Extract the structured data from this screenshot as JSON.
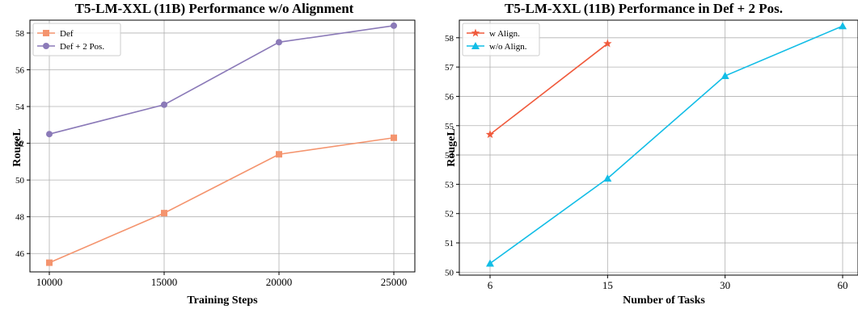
{
  "charts": [
    {
      "chart_data": {
        "type": "line",
        "title": "T5-LM-XXL (11B) Performance w/o Alignment",
        "xlabel": "Training Steps",
        "ylabel": "RougeL",
        "x": [
          10000,
          15000,
          20000,
          25000
        ],
        "xticks": [
          "10000",
          "15000",
          "20000",
          "25000"
        ],
        "yticks": [
          "46",
          "48",
          "50",
          "52",
          "54",
          "56",
          "58"
        ],
        "ylim": [
          45.0,
          58.7
        ],
        "grid": true,
        "legend_position": "top-left",
        "series": [
          {
            "name": "Def",
            "values": [
              45.5,
              48.2,
              51.4,
              52.3
            ],
            "color": "#f4946e",
            "marker": "square"
          },
          {
            "name": "Def + 2 Pos.",
            "values": [
              52.5,
              54.1,
              57.5,
              58.4
            ],
            "color": "#8b7ab8",
            "marker": "circle"
          }
        ]
      }
    },
    {
      "chart_data": {
        "type": "line",
        "title": "T5-LM-XXL (11B) Performance in Def + 2 Pos.",
        "xlabel": "Number of Tasks",
        "ylabel": "RougeL",
        "x": [
          6,
          15,
          30,
          60
        ],
        "xticks": [
          "6",
          "15",
          "30",
          "60"
        ],
        "yticks": [
          "50",
          "51",
          "52",
          "53",
          "54",
          "55",
          "56",
          "57",
          "58"
        ],
        "ylim": [
          49.9,
          58.6
        ],
        "grid": true,
        "legend_position": "top-left",
        "series": [
          {
            "name": "w Align.",
            "values": [
              54.7,
              57.8,
              null,
              null
            ],
            "color": "#f05a3c",
            "marker": "star"
          },
          {
            "name": "w/o Align.",
            "values": [
              50.3,
              53.2,
              56.7,
              58.4
            ],
            "color": "#12bde6",
            "marker": "triangle"
          }
        ]
      }
    }
  ]
}
